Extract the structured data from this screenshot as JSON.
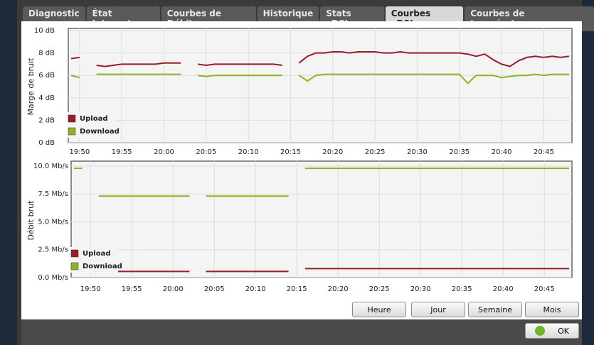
{
  "tabs": [
    "Diagnostic",
    "État Internet",
    "Courbes de Débit",
    "Historique",
    "Stats xDSL",
    "Courbes xDSL",
    "Courbes de température"
  ],
  "active_tab": 5,
  "buttons": [
    "Heure",
    "Jour",
    "Semaine",
    "Mois"
  ],
  "ok_button": "OK",
  "chart_data": [
    {
      "type": "line",
      "ylabel": "Marge de bruit",
      "legend": "lower left",
      "grid": true,
      "x": [
        "19:49",
        "19:50",
        "19:51",
        "19:52",
        "19:53",
        "19:54",
        "19:55",
        "19:56",
        "19:57",
        "19:58",
        "19:59",
        "20:00",
        "20:01",
        "20:02",
        "20:03",
        "20:04",
        "20:05",
        "20:06",
        "20:07",
        "20:08",
        "20:09",
        "20:10",
        "20:11",
        "20:12",
        "20:13",
        "20:14",
        "20:15",
        "20:16",
        "20:17",
        "20:18",
        "20:19",
        "20:20",
        "20:21",
        "20:22",
        "20:23",
        "20:24",
        "20:25",
        "20:26",
        "20:27",
        "20:28",
        "20:29",
        "20:30",
        "20:31",
        "20:32",
        "20:33",
        "20:34",
        "20:35",
        "20:36",
        "20:37",
        "20:38",
        "20:39",
        "20:40",
        "20:41",
        "20:42",
        "20:43",
        "20:44",
        "20:45",
        "20:46",
        "20:47",
        "20:48"
      ],
      "xlim": [
        "19:49",
        "20:48"
      ],
      "xticks": [
        "19:50",
        "19:55",
        "20:00",
        "20:05",
        "20:10",
        "20:15",
        "20:20",
        "20:25",
        "20:30",
        "20:35",
        "20:40",
        "20:45"
      ],
      "ylim": [
        0,
        10
      ],
      "yticks": [
        {
          "value": 0,
          "label": "0 dB"
        },
        {
          "value": 2,
          "label": "2 dB"
        },
        {
          "value": 4,
          "label": "4 dB"
        },
        {
          "value": 6,
          "label": "6 dB"
        },
        {
          "value": 8,
          "label": "8 dB"
        },
        {
          "value": 10,
          "label": "10 dB"
        }
      ],
      "series": [
        {
          "name": "Upload",
          "color": "#9b1b2a",
          "values": [
            7.5,
            7.6,
            null,
            6.9,
            6.8,
            6.9,
            7.0,
            7.0,
            7.0,
            7.0,
            7.0,
            7.1,
            7.1,
            7.1,
            null,
            7.0,
            6.9,
            7.0,
            7.0,
            7.0,
            7.0,
            7.0,
            7.0,
            7.0,
            7.0,
            6.9,
            null,
            7.1,
            7.7,
            8.0,
            8.0,
            8.1,
            8.1,
            8.0,
            8.1,
            8.1,
            8.1,
            8.0,
            8.0,
            8.1,
            8.0,
            8.0,
            8.0,
            8.0,
            8.0,
            8.0,
            8.0,
            7.9,
            7.7,
            7.9,
            7.4,
            7.0,
            6.8,
            7.3,
            7.6,
            7.7,
            7.6,
            7.7,
            7.6,
            7.7
          ]
        },
        {
          "name": "Download",
          "color": "#8fb21d",
          "values": [
            6.0,
            5.8,
            null,
            6.1,
            6.1,
            6.1,
            6.1,
            6.1,
            6.1,
            6.1,
            6.1,
            6.1,
            6.1,
            6.1,
            null,
            6.0,
            5.9,
            6.0,
            6.0,
            6.0,
            6.0,
            6.0,
            6.0,
            6.0,
            6.0,
            6.0,
            null,
            6.0,
            5.5,
            6.0,
            6.1,
            6.1,
            6.1,
            6.1,
            6.1,
            6.1,
            6.1,
            6.1,
            6.1,
            6.1,
            6.1,
            6.1,
            6.1,
            6.1,
            6.1,
            6.1,
            6.1,
            5.3,
            6.0,
            6.0,
            6.0,
            5.8,
            5.9,
            6.0,
            6.0,
            6.1,
            6.0,
            6.1,
            6.1,
            6.1
          ]
        }
      ]
    },
    {
      "type": "line",
      "ylabel": "Débit brut",
      "legend": "lower left",
      "grid": true,
      "x": [
        "19:48",
        "19:49",
        "19:50",
        "19:51",
        "20:02",
        "20:03",
        "20:04",
        "20:14",
        "20:15",
        "20:16",
        "20:48"
      ],
      "xlim": [
        "19:48",
        "20:48"
      ],
      "xticks": [
        "19:50",
        "19:55",
        "20:00",
        "20:05",
        "20:10",
        "20:15",
        "20:20",
        "20:25",
        "20:30",
        "20:35",
        "20:40",
        "20:45"
      ],
      "ylim": [
        0,
        10.25
      ],
      "yticks": [
        {
          "value": 0,
          "label": "0.0 Mb/s"
        },
        {
          "value": 2.5,
          "label": "2.5 Mb/s"
        },
        {
          "value": 5,
          "label": "5.0 Mb/s"
        },
        {
          "value": 7.5,
          "label": "7.5 Mb/s"
        },
        {
          "value": 10,
          "label": "10.0 Mb/s"
        }
      ],
      "series": [
        {
          "name": "Upload",
          "color": "#9b1b2a",
          "values": [
            0.8,
            0.8,
            null,
            0.55,
            0.55,
            null,
            0.55,
            0.55,
            null,
            0.8,
            0.8
          ]
        },
        {
          "name": "Download",
          "color": "#8fb21d",
          "values": [
            9.8,
            9.8,
            null,
            7.3,
            7.3,
            null,
            7.3,
            7.3,
            null,
            9.8,
            9.8
          ]
        }
      ]
    }
  ]
}
